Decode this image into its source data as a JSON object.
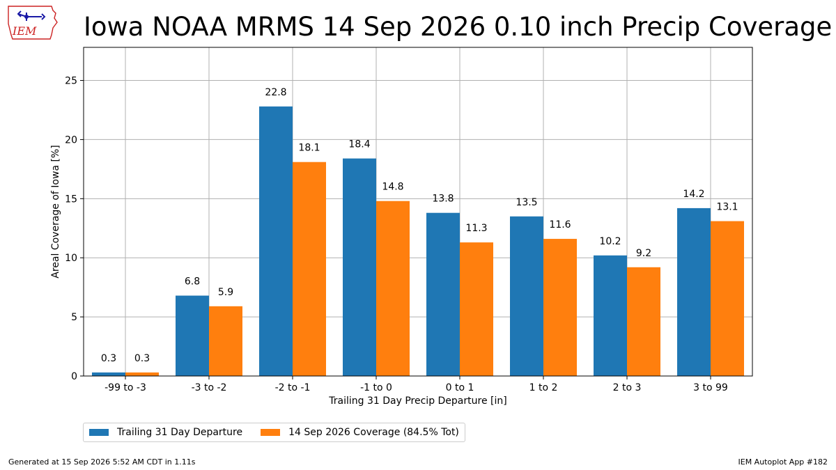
{
  "page": {
    "title": "Iowa NOAA MRMS 14 Sep 2026 0.10 inch Precip Coverage",
    "footer_left": "Generated at 15 Sep 2026 5:52 AM CDT in 1.11s",
    "footer_right": "IEM Autoplot App #182",
    "logo_text": "IEM"
  },
  "colors": {
    "series1": "#1f77b4",
    "series2": "#ff7f0e",
    "grid": "#b0b0b0",
    "logo_red": "#cc2222",
    "logo_blue": "#1a1aa6"
  },
  "chart_data": {
    "type": "bar",
    "xlabel": "Trailing 31 Day Precip Departure [in]",
    "ylabel": "Areal Coverage of Iowa [%]",
    "categories": [
      "-99 to -3",
      "-3 to -2",
      "-2 to -1",
      "-1 to 0",
      "0 to 1",
      "1 to 2",
      "2 to 3",
      "3 to 99"
    ],
    "series": [
      {
        "name": "Trailing 31 Day Departure",
        "values": [
          0.3,
          6.8,
          22.8,
          18.4,
          13.8,
          13.5,
          10.2,
          14.2
        ]
      },
      {
        "name": "14 Sep 2026 Coverage (84.5% Tot)",
        "values": [
          0.3,
          5.9,
          18.1,
          14.8,
          11.3,
          11.6,
          9.2,
          13.1
        ]
      }
    ],
    "ylim": [
      0,
      27.8
    ],
    "yticks": [
      0,
      5,
      10,
      15,
      20,
      25
    ],
    "grid": true,
    "legend_position": "bottom-left"
  }
}
